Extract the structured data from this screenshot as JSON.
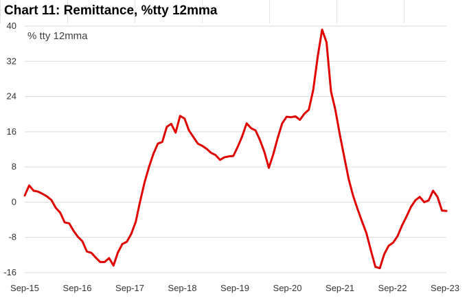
{
  "title": "Chart 11: Remittance, %tty 12mma",
  "colors": {
    "line": "#e00000",
    "grid": "#d9d9d9",
    "text": "#333333"
  },
  "chart_data": {
    "type": "line",
    "title": "Chart 11: Remittance, %tty 12mma",
    "annotation": "% tty 12mma",
    "xlabel": "",
    "ylabel": "",
    "ylim": [
      -16,
      40
    ],
    "yticks": [
      "40",
      "32",
      "24",
      "16",
      "8",
      "0",
      "-8",
      "-16"
    ],
    "ytick_values": [
      40,
      32,
      24,
      16,
      8,
      0,
      -8,
      -16
    ],
    "xticks": [
      "Sep-15",
      "Sep-16",
      "Sep-17",
      "Sep-18",
      "Sep-19",
      "Sep-20",
      "Sep-21",
      "Sep-22",
      "Sep-23"
    ],
    "grid": "horizontal",
    "legend": "none",
    "series": [
      {
        "values": [
          1.5,
          3.8,
          2.6,
          2.4,
          1.9,
          1.3,
          0.5,
          -1.3,
          -2.4,
          -4.6,
          -4.8,
          -6.5,
          -7.9,
          -8.9,
          -11.2,
          -11.5,
          -12.6,
          -13.6,
          -13.6,
          -12.7,
          -14.4,
          -11.4,
          -9.5,
          -9.0,
          -7.2,
          -4.5,
          0.2,
          4.5,
          8.0,
          11.0,
          13.3,
          13.7,
          17.1,
          17.8,
          15.8,
          19.6,
          19.0,
          16.3,
          14.8,
          13.3,
          12.8,
          12.1,
          11.2,
          10.7,
          9.6,
          10.2,
          10.4,
          10.5,
          12.6,
          15.0,
          17.9,
          16.8,
          16.3,
          14.1,
          11.4,
          7.8,
          10.9,
          14.6,
          17.9,
          19.4,
          19.3,
          19.5,
          18.7,
          20.1,
          21.0,
          25.5,
          33.0,
          39.2,
          36.3,
          25.2,
          20.9,
          15.3,
          10.2,
          5.2,
          1.4,
          -1.6,
          -4.4,
          -7.1,
          -11.0,
          -14.7,
          -15.0,
          -11.8,
          -9.9,
          -9.2,
          -7.7,
          -5.3,
          -3.3,
          -1.1,
          0.4,
          1.2,
          0.0,
          0.4,
          2.6,
          1.2,
          -1.9,
          -2.0
        ]
      }
    ]
  }
}
